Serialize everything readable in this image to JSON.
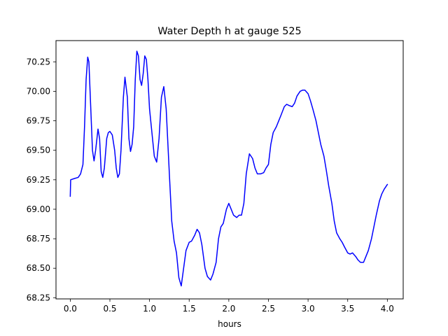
{
  "chart_data": {
    "type": "line",
    "title": "Water Depth h at gauge 525",
    "xlabel": "hours",
    "ylabel": "",
    "xlim": [
      -0.18,
      4.2
    ],
    "ylim": [
      68.24,
      70.43
    ],
    "grid": false,
    "legend": "none",
    "xticks": [
      {
        "value": 0.0,
        "label": "0.0"
      },
      {
        "value": 0.5,
        "label": "0.5"
      },
      {
        "value": 1.0,
        "label": "1.0"
      },
      {
        "value": 1.5,
        "label": "1.5"
      },
      {
        "value": 2.0,
        "label": "2.0"
      },
      {
        "value": 2.5,
        "label": "2.5"
      },
      {
        "value": 3.0,
        "label": "3.0"
      },
      {
        "value": 3.5,
        "label": "3.5"
      },
      {
        "value": 4.0,
        "label": "4.0"
      }
    ],
    "yticks": [
      {
        "value": 68.25,
        "label": "68.25"
      },
      {
        "value": 68.5,
        "label": "68.50"
      },
      {
        "value": 68.75,
        "label": "68.75"
      },
      {
        "value": 69.0,
        "label": "69.00"
      },
      {
        "value": 69.25,
        "label": "69.25"
      },
      {
        "value": 69.5,
        "label": "69.50"
      },
      {
        "value": 69.75,
        "label": "69.75"
      },
      {
        "value": 70.0,
        "label": "70.00"
      },
      {
        "value": 70.25,
        "label": "70.25"
      }
    ],
    "series": [
      {
        "color": "#0000ff",
        "x": [
          0.0,
          0.005,
          0.05,
          0.1,
          0.13,
          0.16,
          0.18,
          0.2,
          0.22,
          0.235,
          0.25,
          0.28,
          0.3,
          0.32,
          0.35,
          0.37,
          0.39,
          0.41,
          0.43,
          0.46,
          0.48,
          0.5,
          0.53,
          0.56,
          0.58,
          0.6,
          0.62,
          0.64,
          0.67,
          0.69,
          0.72,
          0.74,
          0.76,
          0.78,
          0.8,
          0.82,
          0.84,
          0.86,
          0.88,
          0.9,
          0.92,
          0.94,
          0.96,
          0.98,
          1.0,
          1.03,
          1.06,
          1.09,
          1.12,
          1.15,
          1.18,
          1.21,
          1.25,
          1.28,
          1.31,
          1.34,
          1.37,
          1.4,
          1.43,
          1.46,
          1.5,
          1.53,
          1.57,
          1.6,
          1.63,
          1.66,
          1.7,
          1.73,
          1.77,
          1.8,
          1.84,
          1.87,
          1.9,
          1.93,
          1.97,
          2.0,
          2.03,
          2.06,
          2.1,
          2.13,
          2.16,
          2.19,
          2.22,
          2.26,
          2.3,
          2.33,
          2.36,
          2.4,
          2.44,
          2.47,
          2.5,
          2.53,
          2.56,
          2.6,
          2.63,
          2.66,
          2.7,
          2.73,
          2.76,
          2.8,
          2.83,
          2.86,
          2.9,
          2.93,
          2.96,
          3.0,
          3.03,
          3.06,
          3.1,
          3.13,
          3.16,
          3.2,
          3.23,
          3.26,
          3.3,
          3.33,
          3.36,
          3.4,
          3.43,
          3.46,
          3.5,
          3.53,
          3.56,
          3.6,
          3.63,
          3.66,
          3.7,
          3.73,
          3.76,
          3.8,
          3.83,
          3.86,
          3.9,
          3.93,
          3.96,
          4.0
        ],
        "y": [
          69.11,
          69.25,
          69.26,
          69.27,
          69.3,
          69.38,
          69.7,
          70.1,
          70.29,
          70.25,
          70.0,
          69.5,
          69.41,
          69.5,
          69.68,
          69.6,
          69.32,
          69.27,
          69.35,
          69.6,
          69.65,
          69.66,
          69.63,
          69.5,
          69.35,
          69.27,
          69.3,
          69.5,
          69.95,
          70.12,
          69.95,
          69.6,
          69.49,
          69.55,
          69.7,
          70.1,
          70.34,
          70.3,
          70.1,
          70.05,
          70.15,
          70.3,
          70.27,
          70.1,
          69.85,
          69.65,
          69.45,
          69.4,
          69.6,
          69.95,
          70.04,
          69.85,
          69.3,
          68.9,
          68.73,
          68.63,
          68.42,
          68.35,
          68.5,
          68.65,
          68.72,
          68.73,
          68.78,
          68.83,
          68.8,
          68.7,
          68.5,
          68.43,
          68.4,
          68.45,
          68.55,
          68.75,
          68.85,
          68.88,
          69.0,
          69.05,
          69.0,
          68.95,
          68.93,
          68.95,
          68.95,
          69.05,
          69.3,
          69.47,
          69.43,
          69.35,
          69.3,
          69.3,
          69.31,
          69.35,
          69.38,
          69.55,
          69.65,
          69.7,
          69.75,
          69.8,
          69.87,
          69.89,
          69.88,
          69.87,
          69.9,
          69.96,
          70.0,
          70.01,
          70.01,
          69.98,
          69.92,
          69.85,
          69.75,
          69.65,
          69.55,
          69.45,
          69.33,
          69.2,
          69.05,
          68.9,
          68.8,
          68.75,
          68.72,
          68.68,
          68.63,
          68.62,
          68.63,
          68.6,
          68.57,
          68.55,
          68.55,
          68.6,
          68.65,
          68.75,
          68.85,
          68.95,
          69.07,
          69.13,
          69.17,
          69.21
        ]
      }
    ]
  }
}
